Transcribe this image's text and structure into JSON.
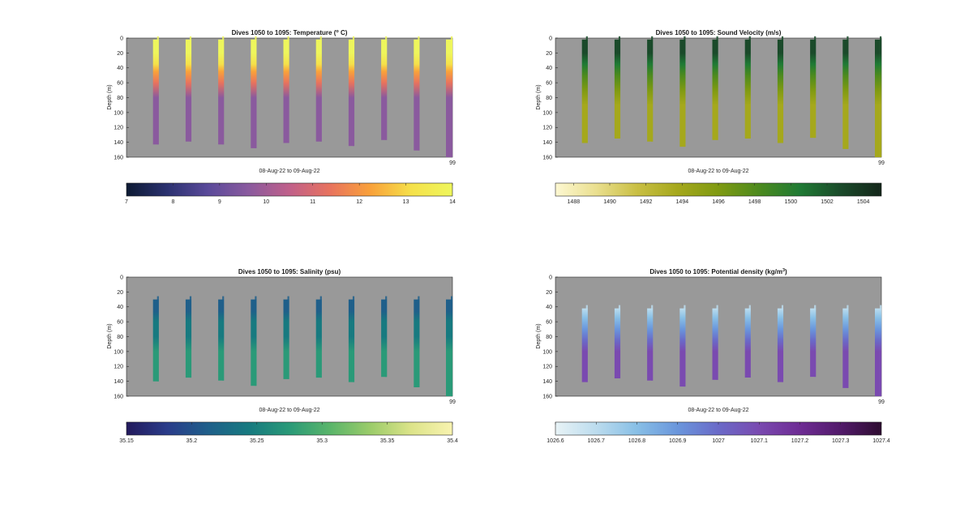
{
  "figure": {
    "background": "#ffffff",
    "axes_background": "#999999"
  },
  "chart_data": [
    {
      "type": "heatmap",
      "id": "temperature",
      "title_prefix": "Dives 1050 to 1095: Temperature (",
      "title_sup": "o",
      "title_suffix": " C)",
      "ylabel": "Depth (m)",
      "xlabel": "08-Aug-22 to 09-Aug-22",
      "y_ticks": [
        0,
        20,
        40,
        60,
        80,
        100,
        120,
        140,
        160
      ],
      "ylim": [
        0,
        160
      ],
      "x_end_label": "99",
      "colorbar": {
        "ticks": [
          7,
          8,
          9,
          10,
          11,
          12,
          13,
          14
        ],
        "tick_labels": [
          "7",
          "8",
          "9",
          "10",
          "11",
          "12",
          "13",
          "14"
        ],
        "range": [
          7,
          14
        ],
        "colors": [
          "#0d1a33",
          "#2b3170",
          "#5a4a9a",
          "#8a5a9e",
          "#c0608a",
          "#e8735e",
          "#f9a23a",
          "#f5e14a",
          "#eef65c"
        ]
      },
      "profiles": {
        "top_depth": 2,
        "bottoms": [
          143,
          139,
          143,
          148,
          141,
          139,
          145,
          137,
          151,
          160
        ],
        "stops": [
          [
            0,
            13.9
          ],
          [
            20,
            13.6
          ],
          [
            35,
            12.9
          ],
          [
            45,
            12.0
          ],
          [
            60,
            11.0
          ],
          [
            80,
            10.0
          ],
          [
            100,
            9.4
          ],
          [
            160,
            9.2
          ]
        ]
      }
    },
    {
      "type": "heatmap",
      "id": "sound_velocity",
      "title_prefix": "Dives 1050 to 1095: Sound Velocity (m/s)",
      "title_sup": "",
      "title_suffix": "",
      "ylabel": "Depth (m)",
      "xlabel": "08-Aug-22 to 09-Aug-22",
      "y_ticks": [
        0,
        20,
        40,
        60,
        80,
        100,
        120,
        140,
        160
      ],
      "ylim": [
        0,
        160
      ],
      "x_end_label": "99",
      "colorbar": {
        "ticks": [
          1488,
          1490,
          1492,
          1494,
          1496,
          1498,
          1500,
          1502,
          1504
        ],
        "tick_labels": [
          "1488",
          "1490",
          "1492",
          "1494",
          "1496",
          "1498",
          "1500",
          "1502",
          "1504"
        ],
        "range": [
          1487,
          1505
        ],
        "colors": [
          "#fdf8d2",
          "#eadf8f",
          "#c9bf44",
          "#a5a81c",
          "#7f9a12",
          "#4c8a1e",
          "#1f7a34",
          "#1a4a2a",
          "#14261a"
        ]
      },
      "profiles": {
        "top_depth": 2,
        "bottoms": [
          141,
          135,
          139,
          146,
          137,
          135,
          141,
          134,
          149,
          160
        ],
        "stops": [
          [
            0,
            1503.5
          ],
          [
            20,
            1503
          ],
          [
            35,
            1501.5
          ],
          [
            50,
            1499
          ],
          [
            70,
            1496
          ],
          [
            90,
            1494
          ],
          [
            120,
            1493.2
          ],
          [
            160,
            1493
          ]
        ]
      }
    },
    {
      "type": "heatmap",
      "id": "salinity",
      "title_prefix": "Dives 1050 to 1095: Salinity (psu)",
      "title_sup": "",
      "title_suffix": "",
      "ylabel": "Depth (m)",
      "xlabel": "08-Aug-22 to 09-Aug-22",
      "y_ticks": [
        0,
        20,
        40,
        60,
        80,
        100,
        120,
        140,
        160
      ],
      "ylim": [
        0,
        160
      ],
      "x_end_label": "99",
      "colorbar": {
        "ticks": [
          35.15,
          35.2,
          35.25,
          35.3,
          35.35,
          35.4
        ],
        "tick_labels": [
          "35.15",
          "35.2",
          "35.25",
          "35.3",
          "35.35",
          "35.4"
        ],
        "range": [
          35.15,
          35.4
        ],
        "colors": [
          "#231a5c",
          "#2a3c8a",
          "#1f5f8a",
          "#177a80",
          "#2a9a78",
          "#5ab56a",
          "#9ccc6a",
          "#dde48a",
          "#f8f3b0"
        ]
      },
      "profiles": {
        "top_depth": 30,
        "bottoms": [
          140,
          135,
          139,
          146,
          137,
          135,
          141,
          134,
          148,
          160
        ],
        "stops": [
          [
            30,
            35.2
          ],
          [
            45,
            35.225
          ],
          [
            60,
            35.235
          ],
          [
            80,
            35.245
          ],
          [
            100,
            35.26
          ],
          [
            120,
            35.275
          ],
          [
            160,
            35.285
          ]
        ]
      }
    },
    {
      "type": "heatmap",
      "id": "potential_density",
      "title_prefix": "Dives 1050 to 1095: Potential density (kg/m",
      "title_sup": "3",
      "title_suffix": ")",
      "ylabel": "Depth (m)",
      "xlabel": "08-Aug-22 to 09-Aug-22",
      "y_ticks": [
        0,
        20,
        40,
        60,
        80,
        100,
        120,
        140,
        160
      ],
      "ylim": [
        0,
        160
      ],
      "x_end_label": "99",
      "colorbar": {
        "ticks": [
          1026.6,
          1026.7,
          1026.8,
          1026.9,
          1027,
          1027.1,
          1027.2,
          1027.3,
          1027.4
        ],
        "tick_labels": [
          "1026.6",
          "1026.7",
          "1026.8",
          "1026.9",
          "1027",
          "1027.1",
          "1027.2",
          "1027.3",
          "1027.4"
        ],
        "range": [
          1026.6,
          1027.4
        ],
        "colors": [
          "#e8f3f6",
          "#bcdcee",
          "#88bfe6",
          "#6a96dc",
          "#6a6ac8",
          "#7a4ab0",
          "#6e2c94",
          "#521a6a",
          "#2e0c30"
        ]
      },
      "profiles": {
        "top_depth": 42,
        "bottoms": [
          141,
          136,
          139,
          147,
          138,
          135,
          141,
          134,
          149,
          160
        ],
        "stops": [
          [
            42,
            1026.72
          ],
          [
            55,
            1026.8
          ],
          [
            70,
            1026.92
          ],
          [
            85,
            1027.02
          ],
          [
            100,
            1027.07
          ],
          [
            160,
            1027.1
          ]
        ]
      }
    }
  ]
}
